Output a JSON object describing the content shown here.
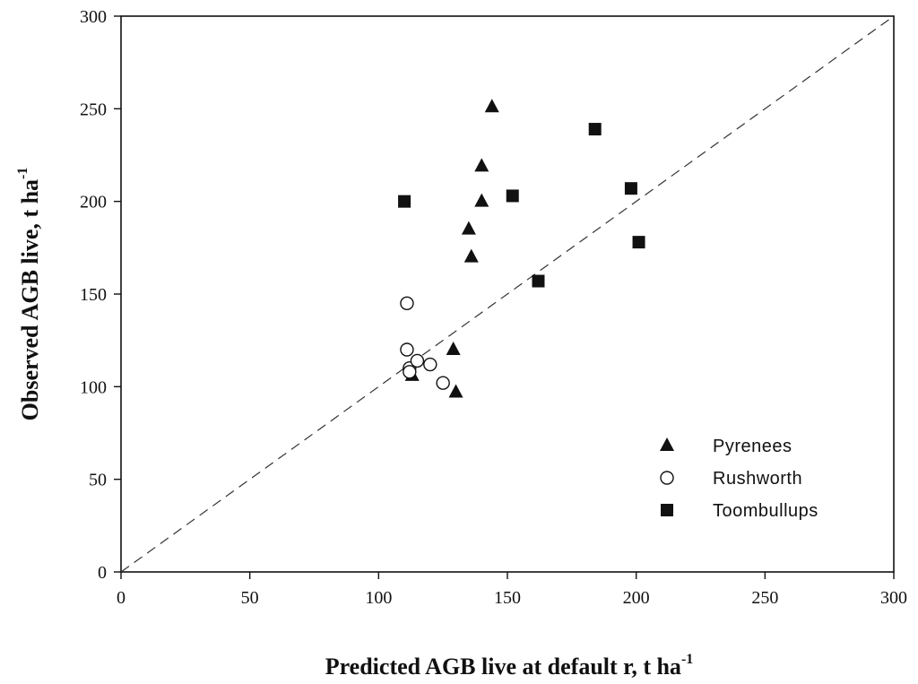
{
  "chart_data": {
    "type": "scatter",
    "title": "",
    "xlabel": "Predicted AGB live at default r, t ha",
    "xlabel_superscript": "-1",
    "ylabel": "Observed AGB live, t ha",
    "ylabel_superscript": "-1",
    "xlim": [
      0,
      300
    ],
    "ylim": [
      0,
      300
    ],
    "x_ticks": [
      0,
      50,
      100,
      150,
      200,
      250,
      300
    ],
    "y_ticks": [
      0,
      50,
      100,
      150,
      200,
      250,
      300
    ],
    "x_tick_labels": [
      "0",
      "50",
      "100",
      "150",
      "200",
      "250",
      "300"
    ],
    "y_tick_labels": [
      "0",
      "50",
      "100",
      "150",
      "200",
      "250",
      "300"
    ],
    "grid": false,
    "legend_position": "bottom-right",
    "reference_line": {
      "kind": "1:1",
      "style": "dashed",
      "from": [
        0,
        0
      ],
      "to": [
        300,
        300
      ]
    },
    "series": [
      {
        "name": "Pyrenees",
        "marker": "filled-triangle",
        "x": [
          144,
          140,
          140,
          135,
          136,
          129,
          113,
          130
        ],
        "y": [
          251,
          219,
          200,
          185,
          170,
          120,
          106,
          97
        ]
      },
      {
        "name": "Rushworth",
        "marker": "open-circle",
        "x": [
          111,
          111,
          112,
          115,
          120,
          125,
          112
        ],
        "y": [
          145,
          120,
          110,
          114,
          112,
          102,
          108
        ]
      },
      {
        "name": "Toombullups",
        "marker": "filled-square",
        "x": [
          184,
          110,
          152,
          198,
          201,
          162
        ],
        "y": [
          239,
          200,
          203,
          207,
          178,
          157
        ]
      }
    ]
  }
}
